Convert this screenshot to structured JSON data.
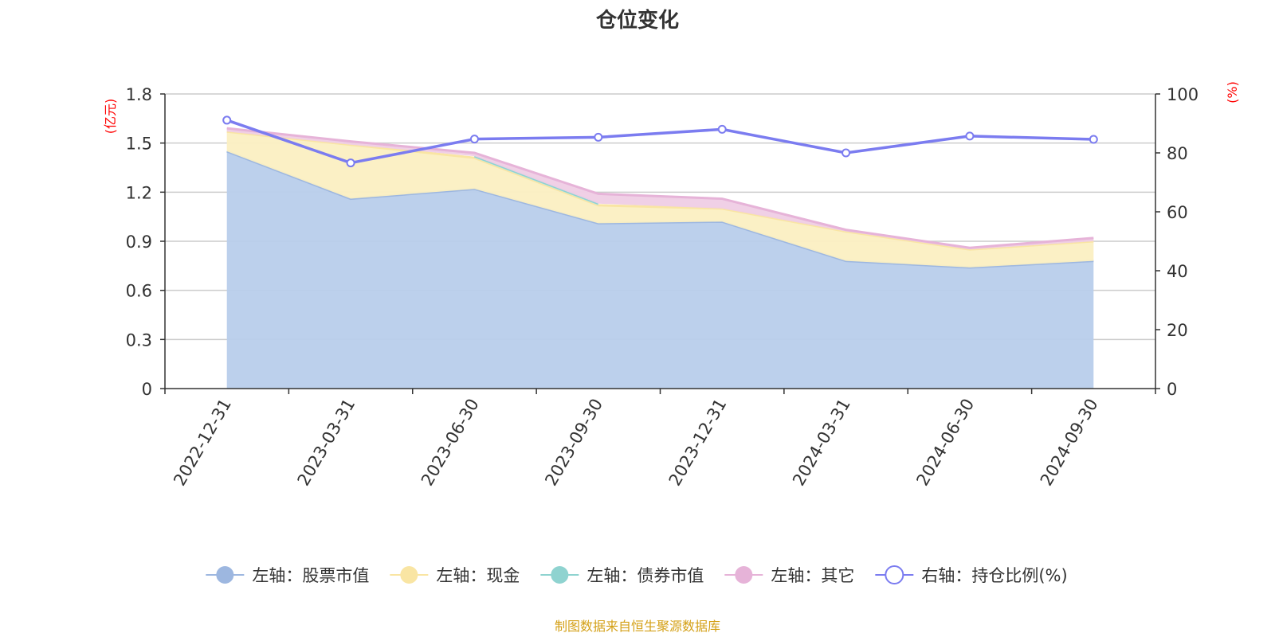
{
  "chart_data": {
    "type": "area",
    "title": "仓位变化",
    "left_axis_unit": "(亿元)",
    "right_axis_unit": "(%)",
    "categories": [
      "2022-12-31",
      "2023-03-31",
      "2023-06-30",
      "2023-09-30",
      "2023-12-31",
      "2024-03-31",
      "2024-06-30",
      "2024-09-30"
    ],
    "left_ylim": [
      0,
      1.8
    ],
    "left_ticks": [
      "0",
      "0.3",
      "0.6",
      "0.9",
      "1.2",
      "1.5",
      "1.8"
    ],
    "right_ylim": [
      0,
      100
    ],
    "right_ticks": [
      "0",
      "20",
      "40",
      "60",
      "80",
      "100"
    ],
    "series": [
      {
        "name": "左轴：股票市值",
        "axis": "left",
        "stacked": true,
        "color": "#9db7e0",
        "fill": "#b8cdeb",
        "values": [
          1.45,
          1.16,
          1.22,
          1.01,
          1.02,
          0.78,
          0.74,
          0.78
        ]
      },
      {
        "name": "左轴：现金",
        "axis": "left",
        "stacked": true,
        "color": "#f9e5a3",
        "fill": "#fbefc2",
        "values": [
          0.12,
          0.33,
          0.19,
          0.11,
          0.08,
          0.18,
          0.11,
          0.12
        ]
      },
      {
        "name": "左轴：债券市值",
        "axis": "left",
        "stacked": true,
        "color": "#8fd3d0",
        "fill": "#c5e8e6",
        "values": [
          null,
          null,
          0.01,
          0.01,
          null,
          null,
          null,
          null
        ]
      },
      {
        "name": "左轴：其它",
        "axis": "left",
        "stacked": true,
        "color": "#e6b3d8",
        "fill": "#efcde5",
        "values": [
          0.02,
          0.02,
          0.02,
          0.06,
          0.06,
          0.01,
          0.01,
          0.02
        ]
      },
      {
        "name": "右轴：持仓比例(%)",
        "axis": "right",
        "stacked": false,
        "color": "#7b7cf0",
        "fill": "#ffffff",
        "values": [
          91.1,
          76.6,
          84.7,
          85.3,
          88.0,
          80.0,
          85.7,
          84.6
        ]
      }
    ],
    "grid": true,
    "legend_position": "bottom"
  },
  "source_text": "制图数据来自恒生聚源数据库",
  "colors": {
    "title": "#333333",
    "axis": "#333333",
    "grid": "#cccccc",
    "unit": "#ff0000",
    "source": "#d4a017"
  }
}
